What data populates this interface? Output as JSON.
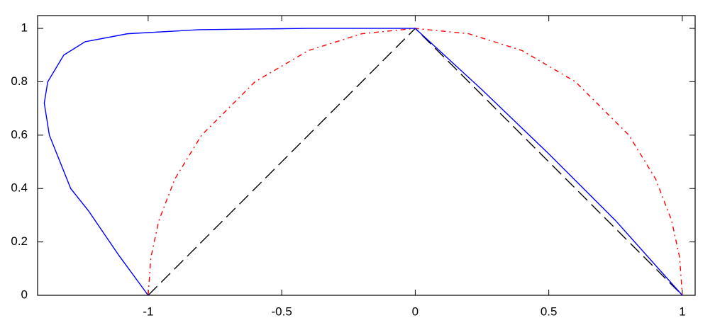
{
  "chart_data": {
    "type": "line",
    "xlim": [
      -1.414,
      1.048
    ],
    "ylim": [
      0,
      1.048
    ],
    "xticks": [
      -1,
      -0.5,
      0,
      0.5,
      1
    ],
    "yticks": [
      0,
      0.2,
      0.4,
      0.6,
      0.8,
      1
    ],
    "grid": false,
    "series": [
      {
        "color": "#000000",
        "dash": "dashed",
        "x": [
          -1,
          0,
          1
        ],
        "values": [
          0,
          1,
          0
        ]
      },
      {
        "color": "#ff0000",
        "dash": "dashdot",
        "x": [
          -1,
          -0.99,
          -0.96,
          -0.9,
          -0.8,
          -0.6,
          -0.4,
          -0.2,
          0,
          0.2,
          0.4,
          0.6,
          0.8,
          0.9,
          0.96,
          0.99,
          1
        ],
        "values": [
          0,
          0.141,
          0.28,
          0.436,
          0.6,
          0.8,
          0.917,
          0.98,
          1,
          0.98,
          0.917,
          0.8,
          0.6,
          0.436,
          0.28,
          0.141,
          0
        ]
      },
      {
        "color": "#0000ff",
        "dash": "solid",
        "x": [
          -1,
          -1.11,
          -1.223,
          -1.29,
          -1.37,
          -1.389,
          -1.376,
          -1.316,
          -1.236,
          -1.077,
          -0.81,
          -0.4,
          0,
          0.25,
          0.5,
          0.75,
          1
        ],
        "values": [
          0,
          0.15,
          0.316,
          0.4,
          0.6,
          0.72,
          0.8,
          0.9,
          0.95,
          0.98,
          0.995,
          1,
          1,
          0.77,
          0.53,
          0.28,
          0
        ]
      }
    ]
  }
}
